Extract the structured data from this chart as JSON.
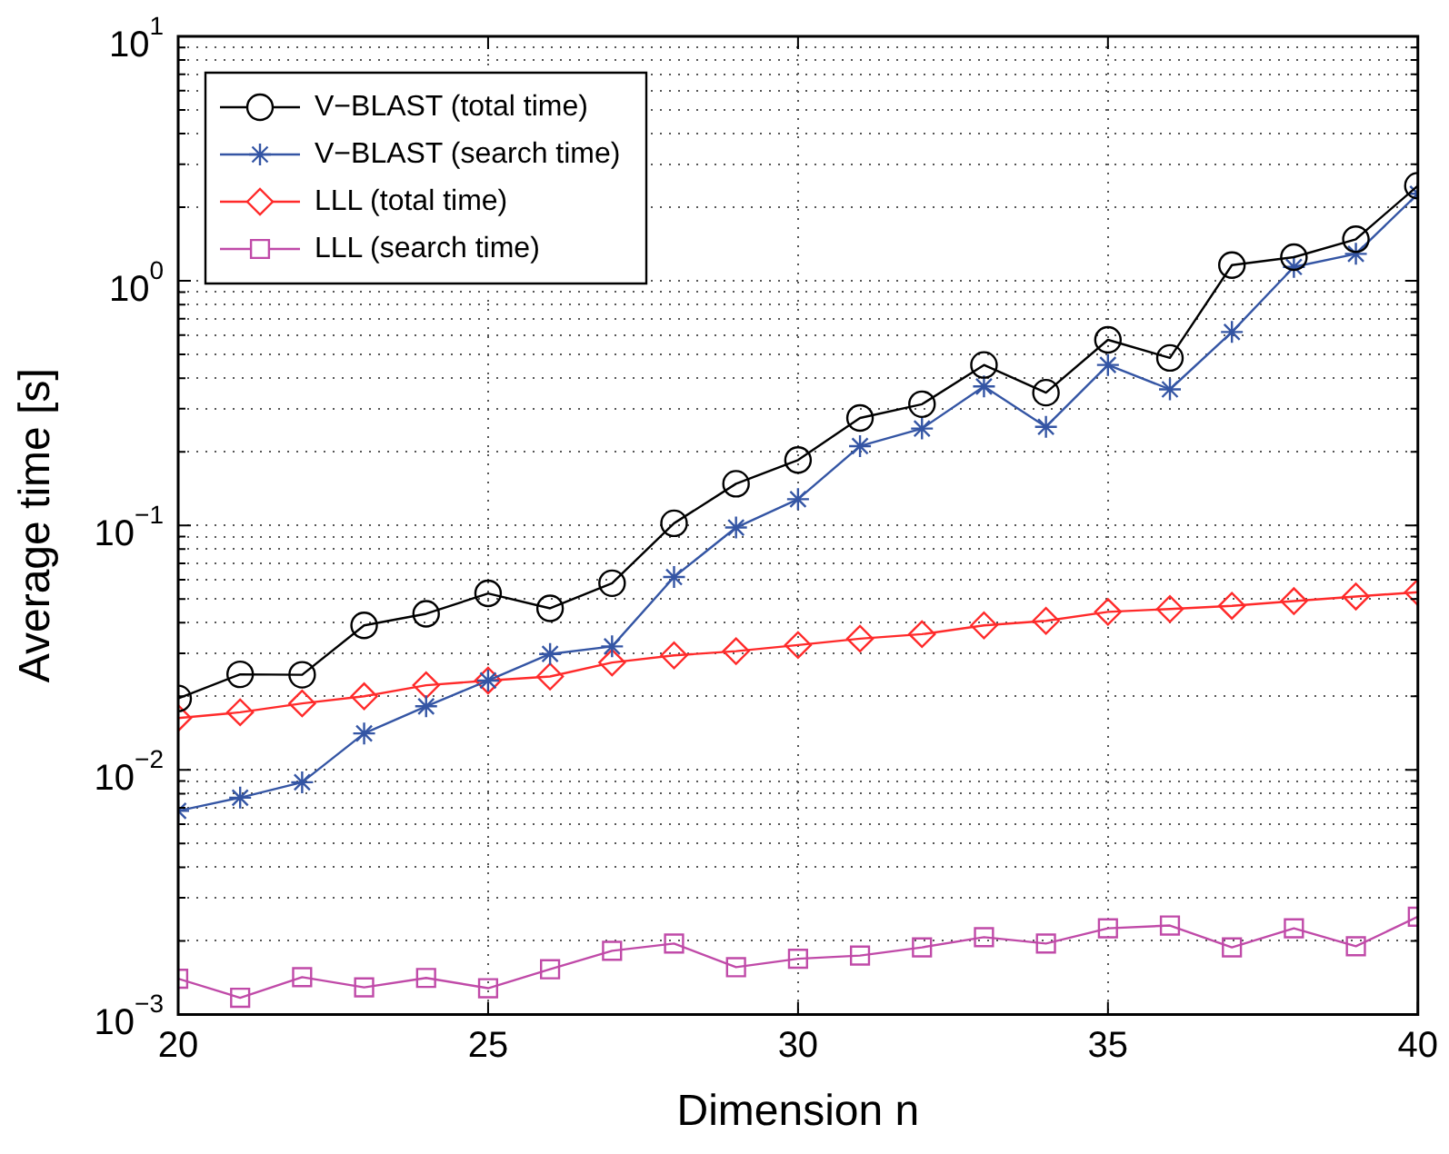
{
  "chart_data": {
    "type": "line",
    "xlabel": "Dimension n",
    "ylabel": "Average time [s]",
    "x": [
      20,
      21,
      22,
      23,
      24,
      25,
      26,
      27,
      28,
      29,
      30,
      31,
      32,
      33,
      34,
      35,
      36,
      37,
      38,
      39,
      40
    ],
    "series": [
      {
        "name": "V−BLAST (total time)",
        "color": "#000000",
        "marker": "circle",
        "values": [
          0.0196,
          0.0246,
          0.0245,
          0.039,
          0.0435,
          0.0527,
          0.0458,
          0.058,
          0.102,
          0.148,
          0.185,
          0.275,
          0.313,
          0.453,
          0.349,
          0.574,
          0.484,
          1.16,
          1.25,
          1.48,
          2.45
        ]
      },
      {
        "name": "V−BLAST (search time)",
        "color": "#3455a4",
        "marker": "cross",
        "values": [
          0.0068,
          0.0077,
          0.0089,
          0.0141,
          0.0182,
          0.0232,
          0.0298,
          0.032,
          0.0615,
          0.098,
          0.128,
          0.211,
          0.249,
          0.37,
          0.253,
          0.453,
          0.36,
          0.618,
          1.14,
          1.29,
          2.27
        ]
      },
      {
        "name": "LLL (total time)",
        "color": "#ff2a2a",
        "marker": "diamond",
        "values": [
          0.0163,
          0.0172,
          0.0187,
          0.02,
          0.0222,
          0.0232,
          0.0241,
          0.0275,
          0.0294,
          0.0306,
          0.0324,
          0.0344,
          0.0359,
          0.039,
          0.0407,
          0.0443,
          0.0455,
          0.0469,
          0.049,
          0.0512,
          0.0533
        ]
      },
      {
        "name": "LLL (search time)",
        "color": "#c04aa8",
        "marker": "square",
        "values": [
          0.0014,
          0.00117,
          0.00142,
          0.00129,
          0.00141,
          0.00128,
          0.00153,
          0.00182,
          0.00195,
          0.00156,
          0.00169,
          0.00174,
          0.00188,
          0.00207,
          0.00195,
          0.00225,
          0.00231,
          0.00188,
          0.00225,
          0.0019,
          0.00251
        ]
      }
    ],
    "log": "y",
    "xlim": [
      20,
      40
    ],
    "ylim": [
      0.001,
      10
    ],
    "xticks": [
      20,
      25,
      30,
      35,
      40
    ],
    "yticks": [
      {
        "value": 0.001,
        "label": "10$^{−3}$"
      },
      {
        "value": 0.002,
        "label": null
      },
      {
        "value": 0.003,
        "label": null
      },
      {
        "value": 0.004,
        "label": null
      },
      {
        "value": 0.005,
        "label": null
      },
      {
        "value": 0.006,
        "label": null
      },
      {
        "value": 0.007,
        "label": null
      },
      {
        "value": 0.008,
        "label": null
      },
      {
        "value": 0.009,
        "label": null
      },
      {
        "value": 0.01,
        "label": "10$^{−2}$"
      },
      {
        "value": 0.02,
        "label": null
      },
      {
        "value": 0.03,
        "label": null
      },
      {
        "value": 0.04,
        "label": null
      },
      {
        "value": 0.05,
        "label": null
      },
      {
        "value": 0.06,
        "label": null
      },
      {
        "value": 0.07,
        "label": null
      },
      {
        "value": 0.08,
        "label": null
      },
      {
        "value": 0.09,
        "label": null
      },
      {
        "value": 0.1,
        "label": "10$^{−1}$"
      },
      {
        "value": 0.2,
        "label": null
      },
      {
        "value": 0.3,
        "label": null
      },
      {
        "value": 0.4,
        "label": null
      },
      {
        "value": 0.5,
        "label": null
      },
      {
        "value": 0.6,
        "label": null
      },
      {
        "value": 0.7,
        "label": null
      },
      {
        "value": 0.8,
        "label": null
      },
      {
        "value": 0.9,
        "label": null
      },
      {
        "value": 1,
        "label": "10$^{0}$"
      },
      {
        "value": 2,
        "label": null
      },
      {
        "value": 3,
        "label": null
      },
      {
        "value": 4,
        "label": null
      },
      {
        "value": 5,
        "label": null
      },
      {
        "value": 6,
        "label": null
      },
      {
        "value": 7,
        "label": null
      },
      {
        "value": 8,
        "label": null
      },
      {
        "value": 9,
        "label": null
      },
      {
        "value": 10,
        "label": "10$^{1}$"
      }
    ],
    "grid": true,
    "legend": "top left",
    "line_style": "solid"
  }
}
